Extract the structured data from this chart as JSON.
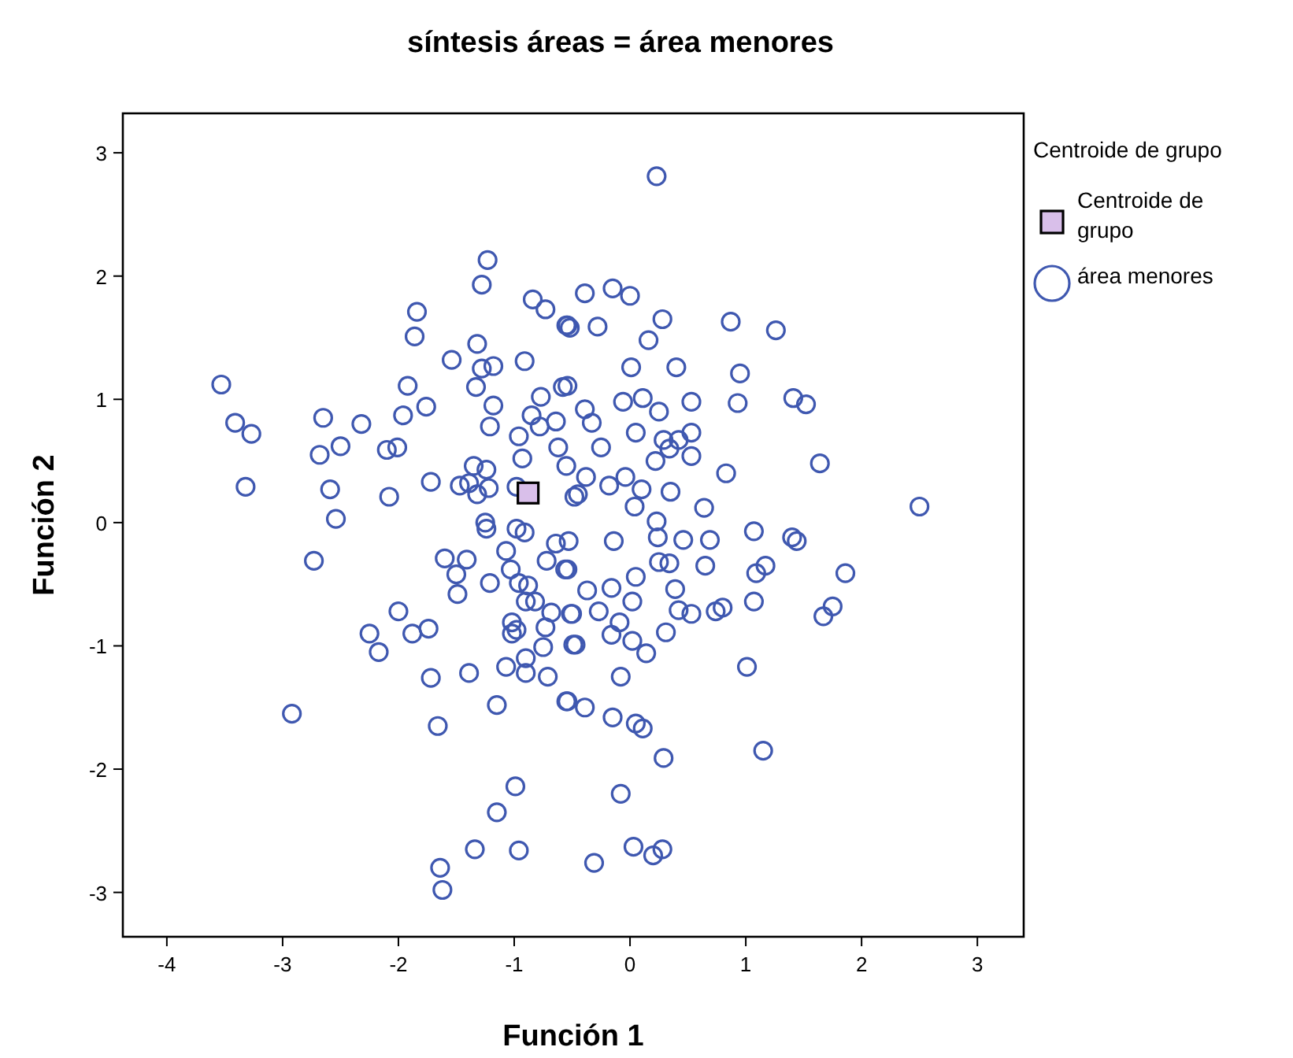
{
  "chart_data": {
    "type": "scatter",
    "title": "síntesis áreas = área menores",
    "xlabel": "Función 1",
    "ylabel": "Función 2",
    "legend_title": "Centroide de grupo",
    "legend": "top right",
    "grid": false,
    "xlim": [
      -4.38,
      3.4
    ],
    "ylim": [
      -3.36,
      3.32
    ],
    "xticks": [
      -4,
      -3,
      -2,
      -1,
      0,
      1,
      2,
      3
    ],
    "yticks": [
      -3,
      -2,
      -1,
      0,
      1,
      2,
      3
    ],
    "series": [
      {
        "name": "área menores",
        "color": "#3f58b0",
        "marker": "circle",
        "x": [
          -1.23,
          -1.28,
          -0.84,
          -0.73,
          -0.55,
          -0.52,
          -1.84,
          -1.86,
          -1.32,
          -1.54,
          -1.28,
          -1.18,
          -0.91,
          -3.53,
          -1.92,
          -1.33,
          -0.77,
          -0.58,
          -1.18,
          -1.76,
          -1.96,
          -2.65,
          -2.32,
          -3.41,
          -3.27,
          -1.21,
          -0.85,
          -0.78,
          -0.64,
          -0.96,
          -0.62,
          -2.68,
          -2.5,
          -2.1,
          -2.01,
          -0.93,
          -0.55,
          -3.32,
          -2.59,
          -2.08,
          -1.72,
          -1.47,
          -1.35,
          -1.24,
          -1.39,
          -1.32,
          -1.22,
          -0.98,
          -0.48,
          -2.54,
          -1.25,
          0.23,
          -0.39,
          -0.15,
          0.0,
          -0.54,
          -0.28,
          0.28,
          0.87,
          1.26,
          0.16,
          0.01,
          0.4,
          0.95,
          -0.06,
          0.11,
          0.25,
          0.53,
          0.93,
          1.41,
          1.52,
          -0.39,
          -0.33,
          -0.54,
          0.05,
          -0.25,
          0.29,
          0.42,
          0.53,
          0.53,
          0.22,
          0.34,
          1.64,
          0.83,
          -0.04,
          -0.38,
          -0.18,
          0.1,
          0.35,
          0.64,
          2.5,
          -0.45,
          0.04,
          0.23,
          -0.14,
          0.24,
          0.46,
          0.69,
          1.07,
          1.4,
          1.44,
          1.86,
          1.17,
          1.09,
          0.65,
          0.25,
          0.34,
          0.05,
          -0.54,
          -0.37,
          -0.16,
          0.02,
          0.39,
          -0.27,
          0.42,
          0.53,
          0.74,
          0.8,
          1.07,
          1.67,
          1.75,
          -0.5,
          -0.09,
          -0.16,
          0.02,
          0.31,
          0.14,
          -0.47,
          1.01,
          -0.08,
          -0.54,
          -0.39,
          -0.15,
          0.05,
          0.11,
          0.29,
          1.15,
          -0.08,
          0.03,
          0.2,
          0.28,
          -0.31,
          -1.24,
          -0.98,
          -0.91,
          -0.64,
          -0.53,
          -2.73,
          -1.6,
          -1.41,
          -1.07,
          -0.72,
          -0.56,
          -1.5,
          -1.49,
          -1.21,
          -1.03,
          -0.96,
          -0.88,
          -0.9,
          -0.82,
          -0.68,
          -0.51,
          -0.73,
          -1.02,
          -0.98,
          -1.02,
          -0.49,
          -0.75,
          -2.0,
          -2.25,
          -2.17,
          -1.88,
          -1.74,
          -1.07,
          -0.9,
          -0.9,
          -0.71,
          -1.72,
          -1.39,
          -0.55,
          -1.15,
          -2.92,
          -1.66,
          -0.99,
          -1.15,
          -1.34,
          -0.96,
          -1.64,
          -1.62
        ],
        "values": [
          2.13,
          1.93,
          1.81,
          1.73,
          1.6,
          1.58,
          1.71,
          1.51,
          1.45,
          1.32,
          1.25,
          1.27,
          1.31,
          1.12,
          1.11,
          1.1,
          1.02,
          1.1,
          0.95,
          0.94,
          0.87,
          0.85,
          0.8,
          0.81,
          0.72,
          0.78,
          0.87,
          0.78,
          0.82,
          0.7,
          0.61,
          0.55,
          0.62,
          0.59,
          0.61,
          0.52,
          0.46,
          0.29,
          0.27,
          0.21,
          0.33,
          0.3,
          0.46,
          0.43,
          0.32,
          0.23,
          0.28,
          0.29,
          0.21,
          0.03,
          0.0,
          2.81,
          1.86,
          1.9,
          1.84,
          1.6,
          1.59,
          1.65,
          1.63,
          1.56,
          1.48,
          1.26,
          1.26,
          1.21,
          0.98,
          1.01,
          0.9,
          0.98,
          0.97,
          1.01,
          0.96,
          0.92,
          0.81,
          1.11,
          0.73,
          0.61,
          0.67,
          0.67,
          0.73,
          0.54,
          0.5,
          0.6,
          0.48,
          0.4,
          0.37,
          0.37,
          0.3,
          0.27,
          0.25,
          0.12,
          0.13,
          0.23,
          0.13,
          0.01,
          -0.15,
          -0.12,
          -0.14,
          -0.14,
          -0.07,
          -0.12,
          -0.15,
          -0.41,
          -0.35,
          -0.41,
          -0.35,
          -0.32,
          -0.33,
          -0.44,
          -0.38,
          -0.55,
          -0.53,
          -0.64,
          -0.54,
          -0.72,
          -0.71,
          -0.74,
          -0.72,
          -0.69,
          -0.64,
          -0.76,
          -0.68,
          -0.74,
          -0.81,
          -0.91,
          -0.96,
          -0.89,
          -1.06,
          -0.99,
          -1.17,
          -1.25,
          -1.45,
          -1.5,
          -1.58,
          -1.63,
          -1.67,
          -1.91,
          -1.85,
          -2.2,
          -2.63,
          -2.7,
          -2.65,
          -2.76,
          -0.05,
          -0.05,
          -0.08,
          -0.17,
          -0.15,
          -0.31,
          -0.29,
          -0.3,
          -0.23,
          -0.31,
          -0.38,
          -0.42,
          -0.58,
          -0.49,
          -0.38,
          -0.49,
          -0.51,
          -0.64,
          -0.64,
          -0.73,
          -0.74,
          -0.85,
          -0.81,
          -0.87,
          -0.9,
          -0.99,
          -1.01,
          -0.72,
          -0.9,
          -1.05,
          -0.9,
          -0.86,
          -1.17,
          -1.1,
          -1.22,
          -1.25,
          -1.26,
          -1.22,
          -1.45,
          -1.48,
          -1.55,
          -1.65,
          -2.14,
          -2.35,
          -2.65,
          -2.66,
          -2.8,
          -2.98
        ]
      },
      {
        "name": "Centroide de grupo",
        "color": "#d9bfea",
        "marker": "square",
        "x": [
          -0.88
        ],
        "values": [
          0.24
        ]
      }
    ]
  }
}
